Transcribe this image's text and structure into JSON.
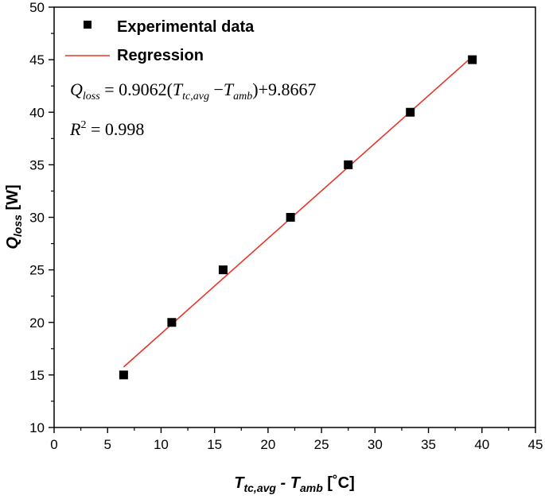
{
  "chart_data": {
    "type": "scatter",
    "xlabel": {
      "main": "T",
      "sub1": "tc,avg",
      "mid": " - T",
      "sub2": "amb",
      "unit": " [˚C]"
    },
    "ylabel": {
      "main": "Q",
      "sub": "loss",
      "unit": " [W]"
    },
    "xlim": [
      0,
      45
    ],
    "ylim": [
      10,
      50
    ],
    "xticks": [
      0,
      5,
      10,
      15,
      20,
      25,
      30,
      35,
      40,
      45
    ],
    "yticks": [
      10,
      15,
      20,
      25,
      30,
      35,
      40,
      45,
      50
    ],
    "series": [
      {
        "name": "Experimental data",
        "kind": "scatter",
        "marker": "square",
        "color": "#000000",
        "x": [
          6.5,
          11.0,
          15.8,
          22.1,
          27.5,
          33.3,
          39.1
        ],
        "y": [
          15,
          20,
          25,
          30,
          35,
          40,
          45
        ]
      },
      {
        "name": "Regression",
        "kind": "line",
        "color": "#e8352b",
        "slope": 0.9062,
        "intercept": 9.8667,
        "x_range": [
          6.5,
          39.1
        ]
      }
    ],
    "annotations": {
      "equation": {
        "Q": "Q",
        "Q_sub": "loss",
        "eq1": " = 0.9062(",
        "T1": "T",
        "T1_sub": "tc,avg",
        "minus": " −",
        "T2": "T",
        "T2_sub": "amb",
        "tail": ")+9.8667"
      },
      "r2": {
        "R": "R",
        "sup": "2",
        "val": " = 0.998"
      }
    },
    "legend_position": "top-left",
    "grid": false
  }
}
